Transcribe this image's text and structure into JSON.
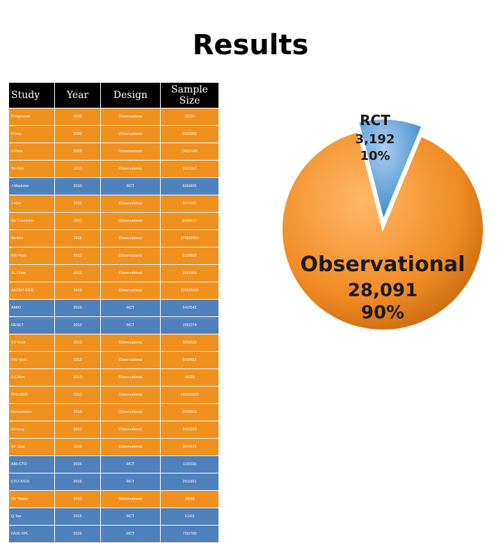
{
  "title": "Results",
  "table": {
    "headers": [
      "Study",
      "Year",
      "Design",
      "Sample Size"
    ],
    "rows": [
      {
        "study": "P-Ingesson",
        "year": "2005",
        "design": "Observational",
        "size": "22/34",
        "type": "obs"
      },
      {
        "study": "P-Kay",
        "year": "2009",
        "design": "Observational",
        "size": "665/665",
        "type": "obs"
      },
      {
        "study": "S-Park",
        "year": "2009",
        "design": "Observational",
        "size": "1452/145",
        "type": "obs"
      },
      {
        "study": "Sh-Kim",
        "year": "2010",
        "design": "Observational",
        "size": "266/152",
        "type": "obs"
      },
      {
        "study": "J-Madison",
        "year": "2010",
        "design": "RCT",
        "size": "605/605",
        "type": "rct"
      },
      {
        "study": "J-Kim",
        "year": "2011",
        "design": "Observational",
        "size": "447/447",
        "type": "obs"
      },
      {
        "study": "BE-Claessen",
        "year": "2011",
        "design": "Observational",
        "size": "625/673",
        "type": "obs"
      },
      {
        "study": "Sh-Hur",
        "year": "2011",
        "design": "Observational",
        "size": "2765/2416",
        "type": "obs"
      },
      {
        "study": "KW Park",
        "year": "2012",
        "design": "Observational",
        "size": "610/602",
        "type": "obs"
      },
      {
        "study": "SL Chen",
        "year": "2012",
        "design": "Observational",
        "size": "306/506",
        "type": "obs"
      },
      {
        "study": "ASCMT-DES",
        "year": "2013",
        "design": "Observational",
        "size": "3266/5236",
        "type": "obs"
      },
      {
        "study": "AMIO",
        "year": "2013",
        "design": "RCT",
        "size": "542/542",
        "type": "rct"
      },
      {
        "study": "RESET",
        "year": "2013",
        "design": "RCT",
        "size": "266/274",
        "type": "rct"
      },
      {
        "study": "YJ Youn",
        "year": "2013",
        "design": "Observational",
        "size": "325/216",
        "type": "obs"
      },
      {
        "study": "YW Yoon",
        "year": "2013",
        "design": "Observational",
        "size": "642/412",
        "type": "obs"
      },
      {
        "study": "SG Ahn",
        "year": "2013",
        "design": "Observational",
        "size": "46/36",
        "type": "obs"
      },
      {
        "study": "IRIS-DES",
        "year": "2013",
        "design": "Observational",
        "size": "1666/1628",
        "type": "obs"
      },
      {
        "study": "Namamaker",
        "year": "2014",
        "design": "Observational",
        "size": "505/505",
        "type": "obs"
      },
      {
        "study": "S-Hong",
        "year": "2014",
        "design": "Observational",
        "size": "246/228",
        "type": "obs"
      },
      {
        "study": "SP Gao",
        "year": "2014",
        "design": "Observational",
        "size": "307/676",
        "type": "obs"
      },
      {
        "study": "AIR-CTO",
        "year": "2015",
        "design": "RCT",
        "size": "115/115",
        "type": "rct"
      },
      {
        "study": "CTO-IVUS",
        "year": "2015",
        "design": "RCT",
        "size": "201/201",
        "type": "rct"
      },
      {
        "study": "NV Yazen",
        "year": "2015",
        "design": "Observational",
        "size": "36/36",
        "type": "obs"
      },
      {
        "study": "Q Tan",
        "year": "2015",
        "design": "RCT",
        "size": "61/62",
        "type": "rct"
      },
      {
        "study": "IVUS-XPL",
        "year": "2015",
        "design": "RCT",
        "size": "700/700",
        "type": "rct"
      }
    ]
  },
  "chart_data": {
    "type": "pie",
    "title": "",
    "slices": [
      {
        "label": "RCT",
        "value": 3192,
        "value_label": "3,192",
        "percent_label": "10%",
        "color": "#5b9bd5"
      },
      {
        "label": "Observational",
        "value": 28091,
        "value_label": "28,091",
        "percent_label": "90%",
        "color": "#f08a24"
      }
    ]
  },
  "colors": {
    "observational_row": "#f0901e",
    "rct_row": "#4f81bd",
    "header": "#000000"
  }
}
